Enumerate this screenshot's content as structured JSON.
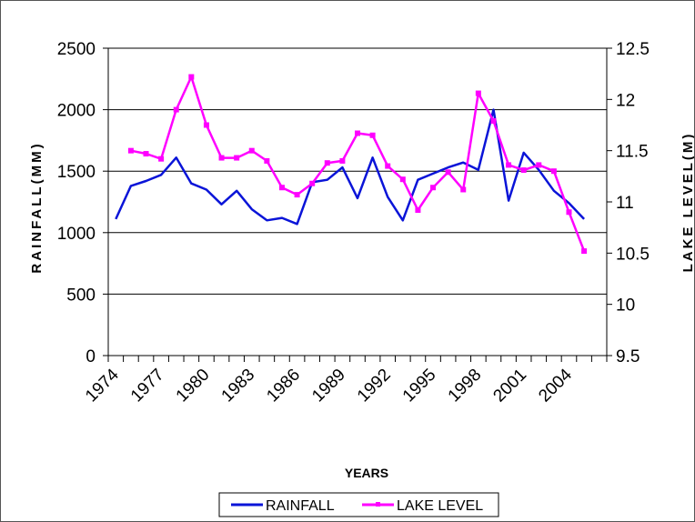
{
  "chart_data": {
    "type": "line",
    "xlabel": "YEARS",
    "ylabel_left": "RAINFALL(MM)",
    "ylabel_right": "LAKE LEVEL(M)",
    "ylim_left": [
      0,
      2500
    ],
    "ylim_right": [
      9.5,
      12.5
    ],
    "yticks_left": [
      "0",
      "500",
      "1000",
      "1500",
      "2000",
      "2500"
    ],
    "yticks_right": [
      "9.5",
      "10",
      "10.5",
      "11",
      "11.5",
      "12",
      "12.5"
    ],
    "x_tick_labels": [
      "1974",
      "1977",
      "1980",
      "1983",
      "1986",
      "1989",
      "1992",
      "1995",
      "1998",
      "2001",
      "2004"
    ],
    "grid": true,
    "legend_position": "bottom",
    "x": [
      1974,
      1975,
      1976,
      1977,
      1978,
      1979,
      1980,
      1981,
      1982,
      1983,
      1984,
      1985,
      1986,
      1987,
      1988,
      1989,
      1990,
      1991,
      1992,
      1993,
      1994,
      1995,
      1996,
      1997,
      1998,
      1999,
      2000,
      2001,
      2002,
      2003,
      2004,
      2005,
      2006
    ],
    "series": [
      {
        "name": "RAINFALL",
        "axis": "left",
        "color": "#0a14d8",
        "marker": false,
        "values": [
          1110,
          1380,
          1420,
          1470,
          1610,
          1400,
          1350,
          1230,
          1340,
          1190,
          1100,
          1120,
          1070,
          1410,
          1430,
          1530,
          1280,
          1610,
          1290,
          1100,
          1430,
          1480,
          1530,
          1570,
          1510,
          2000,
          1260,
          1650,
          1510,
          1340,
          1240,
          1110,
          null
        ]
      },
      {
        "name": "LAKE LEVEL",
        "axis": "right",
        "color": "#ff00ff",
        "marker": true,
        "values": [
          null,
          11.5,
          11.47,
          11.42,
          11.9,
          12.22,
          11.75,
          11.43,
          11.43,
          11.5,
          11.4,
          11.14,
          11.07,
          11.18,
          11.38,
          11.4,
          11.67,
          11.65,
          11.35,
          11.22,
          10.92,
          11.14,
          11.29,
          11.12,
          12.06,
          11.79,
          11.36,
          11.31,
          11.36,
          11.3,
          10.9,
          10.52,
          null
        ]
      }
    ]
  }
}
